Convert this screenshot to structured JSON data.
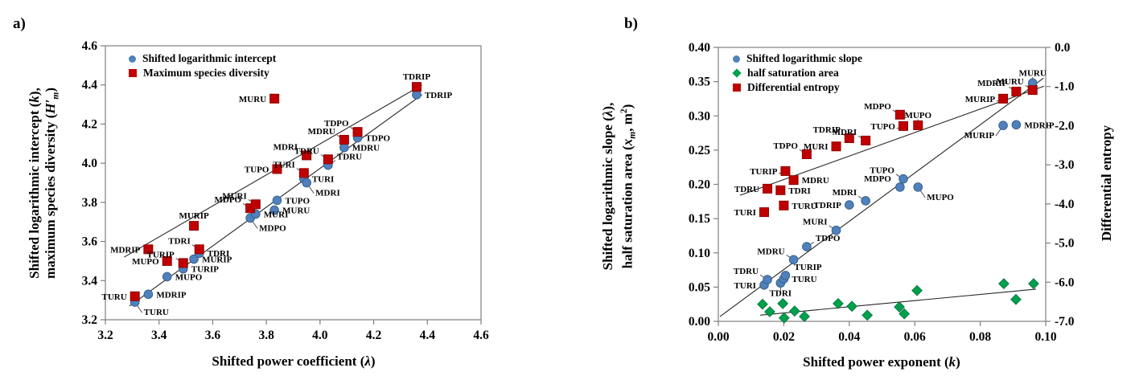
{
  "panel_tags": {
    "a": "a)",
    "b": "b)"
  },
  "chart_data": [
    {
      "id": "a",
      "type": "scatter",
      "x_axis": {
        "label": "Shifted power coefficient (λ)",
        "label_parts": [
          {
            "t": "Shifted power coefficient ("
          },
          {
            "t": "λ",
            "i": 1
          },
          {
            "t": ")"
          }
        ],
        "min": 3.2,
        "max": 4.6,
        "tick_values": [
          3.2,
          3.4,
          3.6,
          3.8,
          4.0,
          4.2,
          4.4,
          4.6
        ],
        "tick_labels": [
          "3.2",
          "3.4",
          "3.6",
          "3.8",
          "4.0",
          "4.2",
          "4.4",
          "4.6"
        ]
      },
      "y_axis": {
        "label": "Shifted logarithmic intercept (k), maximum species diversity (H′m)",
        "label_lines": [
          [
            {
              "t": "Shifted logarithmic intercept ("
            },
            {
              "t": "k",
              "i": 1
            },
            {
              "t": "),"
            }
          ],
          [
            {
              "t": "maximum species diversity ("
            },
            {
              "t": "H′",
              "i": 1
            },
            {
              "t": "m",
              "i": 1,
              "sub": 1
            },
            {
              "t": ")"
            }
          ]
        ],
        "min": 3.2,
        "max": 4.6,
        "tick_values": [
          3.2,
          3.4,
          3.6,
          3.8,
          4.0,
          4.2,
          4.4,
          4.6
        ],
        "tick_labels": [
          "3.2",
          "3.4",
          "3.6",
          "3.8",
          "4.0",
          "4.2",
          "4.4",
          "4.6"
        ]
      },
      "legend": [
        {
          "name": "Shifted logarithmic intercept",
          "marker": "circle",
          "color": "#4F81BD"
        },
        {
          "name": "Maximum species diversity",
          "marker": "square",
          "color": "#C00000"
        }
      ],
      "series": [
        {
          "name": "Shifted logarithmic intercept",
          "marker": "circle",
          "color": "#4F81BD",
          "edge": "#38618C",
          "points": [
            {
              "site": "TURU",
              "x": 3.31,
              "y": 3.29,
              "ls": "below-right",
              "ld": 1
            },
            {
              "site": "MDRIP",
              "x": 3.36,
              "y": 3.33,
              "ls": "right"
            },
            {
              "site": "MUPO",
              "x": 3.43,
              "y": 3.42,
              "ls": "right"
            },
            {
              "site": "TURIP",
              "x": 3.49,
              "y": 3.46,
              "ls": "right"
            },
            {
              "site": "MURIP",
              "x": 3.53,
              "y": 3.51,
              "ls": "right"
            },
            {
              "site": "TDRI",
              "x": 3.55,
              "y": 3.54,
              "ls": "right"
            },
            {
              "site": "MDPO",
              "x": 3.74,
              "y": 3.72,
              "ls": "below-right",
              "ld": 1
            },
            {
              "site": "MURI",
              "x": 3.76,
              "y": 3.74,
              "ls": "right"
            },
            {
              "site": "MURU",
              "x": 3.83,
              "y": 3.76,
              "ls": "right"
            },
            {
              "site": "TUPO",
              "x": 3.84,
              "y": 3.81,
              "ls": "right"
            },
            {
              "site": "TURI",
              "x": 3.94,
              "y": 3.92,
              "ls": "right"
            },
            {
              "site": "MDRI",
              "x": 3.95,
              "y": 3.9,
              "ls": "below-right",
              "ld": 1
            },
            {
              "site": "TDRU",
              "x": 4.03,
              "y": 3.99,
              "ls": "above-right",
              "ld": 1
            },
            {
              "site": "MDRU",
              "x": 4.09,
              "y": 4.08,
              "ls": "right"
            },
            {
              "site": "TDPO",
              "x": 4.14,
              "y": 4.13,
              "ls": "right"
            },
            {
              "site": "TDRIP",
              "x": 4.36,
              "y": 4.35,
              "ls": "right"
            }
          ]
        },
        {
          "name": "Maximum species diversity",
          "marker": "square",
          "color": "#C00000",
          "edge": "#8E0000",
          "points": [
            {
              "site": "TURU",
              "x": 3.31,
              "y": 3.32,
              "ls": "left"
            },
            {
              "site": "MDRIP",
              "x": 3.36,
              "y": 3.56,
              "ls": "left"
            },
            {
              "site": "MUPO",
              "x": 3.43,
              "y": 3.5,
              "ls": "left"
            },
            {
              "site": "TURIP",
              "x": 3.49,
              "y": 3.49,
              "ls": "above-left",
              "ld": 1
            },
            {
              "site": "MURIP",
              "x": 3.53,
              "y": 3.68,
              "ls": "above"
            },
            {
              "site": "TDRI",
              "x": 3.55,
              "y": 3.56,
              "ls": "above-left",
              "ld": 1
            },
            {
              "site": "MDPO",
              "x": 3.74,
              "y": 3.77,
              "ls": "above-left",
              "ld": 1
            },
            {
              "site": "MURI",
              "x": 3.76,
              "y": 3.79,
              "ls": "above-left",
              "ld": 1
            },
            {
              "site": "MURU",
              "x": 3.83,
              "y": 4.33,
              "ls": "left"
            },
            {
              "site": "TUPO",
              "x": 3.84,
              "y": 3.97,
              "ls": "left"
            },
            {
              "site": "TURI",
              "x": 3.94,
              "y": 3.95,
              "ls": "above-left",
              "ld": 1
            },
            {
              "site": "MDRI",
              "x": 3.95,
              "y": 4.04,
              "ls": "above-left",
              "ld": 1
            },
            {
              "site": "TDRU",
              "x": 4.03,
              "y": 4.02,
              "ls": "above-left",
              "ld": 1
            },
            {
              "site": "MDRU",
              "x": 4.09,
              "y": 4.12,
              "ls": "above-left",
              "ld": 1
            },
            {
              "site": "TDPO",
              "x": 4.14,
              "y": 4.16,
              "ls": "above-left",
              "ld": 1
            },
            {
              "site": "TDRIP",
              "x": 4.36,
              "y": 4.39,
              "ls": "above"
            }
          ]
        }
      ],
      "trendlines": [
        {
          "x1": 3.27,
          "y1": 3.52,
          "x2": 4.38,
          "y2": 4.4
        },
        {
          "x1": 3.29,
          "y1": 3.27,
          "x2": 4.38,
          "y2": 4.35
        }
      ]
    },
    {
      "id": "b",
      "type": "scatter",
      "x_axis": {
        "label": "Shifted power exponent (k)",
        "label_parts": [
          {
            "t": "Shifted power exponent ("
          },
          {
            "t": "k",
            "i": 1
          },
          {
            "t": ")"
          }
        ],
        "min": 0.0,
        "max": 0.1,
        "tick_values": [
          0.0,
          0.02,
          0.04,
          0.06,
          0.08,
          0.1
        ],
        "tick_labels": [
          "0.00",
          "0.02",
          "0.04",
          "0.06",
          "0.08",
          "0.10"
        ]
      },
      "y_axis_left": {
        "label": "Shifted logarithmic slope (λ), half saturation area (xm, m2)",
        "label_lines": [
          [
            {
              "t": "Shifted logarithmic slope ("
            },
            {
              "t": "λ",
              "i": 1
            },
            {
              "t": "),"
            }
          ],
          [
            {
              "t": "half saturation area ("
            },
            {
              "t": "x",
              "i": 1
            },
            {
              "t": "m",
              "i": 1,
              "sub": 1
            },
            {
              "t": ", m"
            },
            {
              "t": "2",
              "sup": 1
            },
            {
              "t": ")"
            }
          ]
        ],
        "min": 0.0,
        "max": 0.4,
        "tick_values": [
          0.0,
          0.05,
          0.1,
          0.15,
          0.2,
          0.25,
          0.3,
          0.35,
          0.4
        ],
        "tick_labels": [
          "0.00",
          "0.05",
          "0.10",
          "0.15",
          "0.20",
          "0.25",
          "0.30",
          "0.35",
          "0.40"
        ]
      },
      "y_axis_right": {
        "label": "Differential entropy",
        "label_parts": [
          {
            "t": "Differential entropy"
          }
        ],
        "min": -7.0,
        "max": 0.0,
        "tick_values": [
          0,
          -1,
          -2,
          -3,
          -4,
          -5,
          -6,
          -7
        ],
        "tick_labels": [
          "0.0",
          "-1.0",
          "-2.0",
          "-3.0",
          "-4.0",
          "-5.0",
          "-6.0",
          "-7.0"
        ]
      },
      "legend": [
        {
          "name": "Shifted logarithmic slope",
          "marker": "circle",
          "color": "#4F81BD"
        },
        {
          "name": "half saturation area",
          "marker": "diamond",
          "color": "#00A04C"
        },
        {
          "name": "Differential entropy",
          "marker": "square",
          "color": "#C00000"
        }
      ],
      "series": [
        {
          "name": "Shifted logarithmic slope",
          "axis": "left",
          "marker": "circle",
          "color": "#4F81BD",
          "edge": "#38618C",
          "points": [
            {
              "site": "TURI",
              "x": 0.014,
              "y": 0.053,
              "ls": "left"
            },
            {
              "site": "TDRU",
              "x": 0.015,
              "y": 0.061,
              "ls": "above-left",
              "ld": 1
            },
            {
              "site": "TDRI",
              "x": 0.019,
              "y": 0.056,
              "ls": "below",
              "ld": 1
            },
            {
              "site": "TURU",
              "x": 0.02,
              "y": 0.062,
              "ls": "right"
            },
            {
              "site": "TURIP",
              "x": 0.0205,
              "y": 0.067,
              "ls": "above-right"
            },
            {
              "site": "MDRU",
              "x": 0.023,
              "y": 0.09,
              "ls": "above-left",
              "ld": 1
            },
            {
              "site": "TDPO",
              "x": 0.027,
              "y": 0.109,
              "ls": "above-right",
              "ld": 1
            },
            {
              "site": "MURI",
              "x": 0.036,
              "y": 0.133,
              "ls": "above-left",
              "ld": 1
            },
            {
              "site": "TDRIP",
              "x": 0.04,
              "y": 0.17,
              "ls": "left"
            },
            {
              "site": "MDRI",
              "x": 0.045,
              "y": 0.176,
              "ls": "above-left",
              "ld": 1
            },
            {
              "site": "MDPO",
              "x": 0.0555,
              "y": 0.196,
              "ls": "above-left"
            },
            {
              "site": "TUPO",
              "x": 0.0565,
              "y": 0.208,
              "ls": "above-left",
              "ld": 1
            },
            {
              "site": "MUPO",
              "x": 0.061,
              "y": 0.196,
              "ls": "below-right",
              "ld": 1
            },
            {
              "site": "MURIP",
              "x": 0.087,
              "y": 0.286,
              "ls": "below-left",
              "ld": 1
            },
            {
              "site": "MDRIP",
              "x": 0.091,
              "y": 0.287,
              "ls": "right"
            },
            {
              "site": "MURU",
              "x": 0.096,
              "y": 0.348,
              "ls": "above",
              "ld": 1
            }
          ]
        },
        {
          "name": "half saturation area",
          "axis": "left",
          "marker": "diamond",
          "color": "#00A04C",
          "edge": "#00703A",
          "points": [
            {
              "x": 0.0135,
              "y": 0.025
            },
            {
              "x": 0.0157,
              "y": 0.014
            },
            {
              "x": 0.0197,
              "y": 0.026
            },
            {
              "x": 0.0201,
              "y": 0.005
            },
            {
              "x": 0.0233,
              "y": 0.015
            },
            {
              "x": 0.0263,
              "y": 0.007
            },
            {
              "x": 0.0366,
              "y": 0.026
            },
            {
              "x": 0.0408,
              "y": 0.022
            },
            {
              "x": 0.0455,
              "y": 0.009
            },
            {
              "x": 0.0553,
              "y": 0.021
            },
            {
              "x": 0.0568,
              "y": 0.011
            },
            {
              "x": 0.0607,
              "y": 0.045
            },
            {
              "x": 0.0872,
              "y": 0.055
            },
            {
              "x": 0.0909,
              "y": 0.032
            },
            {
              "x": 0.0963,
              "y": 0.055
            }
          ]
        },
        {
          "name": "Differential entropy",
          "axis": "right",
          "marker": "square",
          "color": "#C00000",
          "edge": "#8E0000",
          "points": [
            {
              "site": "TURI",
              "x": 0.014,
              "y": -4.21,
              "ls": "left"
            },
            {
              "site": "TDRU",
              "x": 0.015,
              "y": -3.61,
              "ls": "left"
            },
            {
              "site": "TDRI",
              "x": 0.019,
              "y": -3.65,
              "ls": "right"
            },
            {
              "site": "TURU",
              "x": 0.02,
              "y": -4.04,
              "ls": "right"
            },
            {
              "site": "TURIP",
              "x": 0.0205,
              "y": -3.16,
              "ls": "left",
              "ld": 1
            },
            {
              "site": "MDRU",
              "x": 0.023,
              "y": -3.39,
              "ls": "right"
            },
            {
              "site": "TDPO",
              "x": 0.027,
              "y": -2.73,
              "ls": "above-left",
              "ld": 1
            },
            {
              "site": "MURI",
              "x": 0.036,
              "y": -2.53,
              "ls": "left"
            },
            {
              "site": "TDRIP",
              "x": 0.04,
              "y": -2.32,
              "ls": "above-left",
              "ld": 1
            },
            {
              "site": "MDRI",
              "x": 0.045,
              "y": -2.38,
              "ls": "above-left",
              "ld": 1
            },
            {
              "site": "MDPO",
              "x": 0.0555,
              "y": -1.72,
              "ls": "above-left",
              "ld": 1
            },
            {
              "site": "TUPO",
              "x": 0.0565,
              "y": -2.01,
              "ls": "left",
              "ld": 1
            },
            {
              "site": "MUPO",
              "x": 0.061,
              "y": -1.99,
              "ls": "above",
              "ld": 1
            },
            {
              "site": "MURIP",
              "x": 0.087,
              "y": -1.31,
              "ls": "left",
              "ld": 1
            },
            {
              "site": "MDRIP",
              "x": 0.091,
              "y": -1.13,
              "ls": "above-left",
              "ld": 1
            },
            {
              "site": "MURU",
              "x": 0.096,
              "y": -1.09,
              "ls": "above-left",
              "ld": 1
            }
          ]
        }
      ],
      "trendlines": [
        {
          "axis": "right",
          "x1": 0.0066,
          "y1": -3.78,
          "x2": 0.0995,
          "y2": -0.99
        },
        {
          "axis": "left",
          "x1": 0.0005,
          "y1": 0.007,
          "x2": 0.0993,
          "y2": 0.355
        },
        {
          "axis": "left",
          "x1": 0.0128,
          "y1": 0.009,
          "x2": 0.097,
          "y2": 0.047
        }
      ],
      "colors": {
        "blue": "#4F81BD",
        "red": "#C00000",
        "green": "#00A04C",
        "axis": "#7F7F7F"
      }
    }
  ]
}
